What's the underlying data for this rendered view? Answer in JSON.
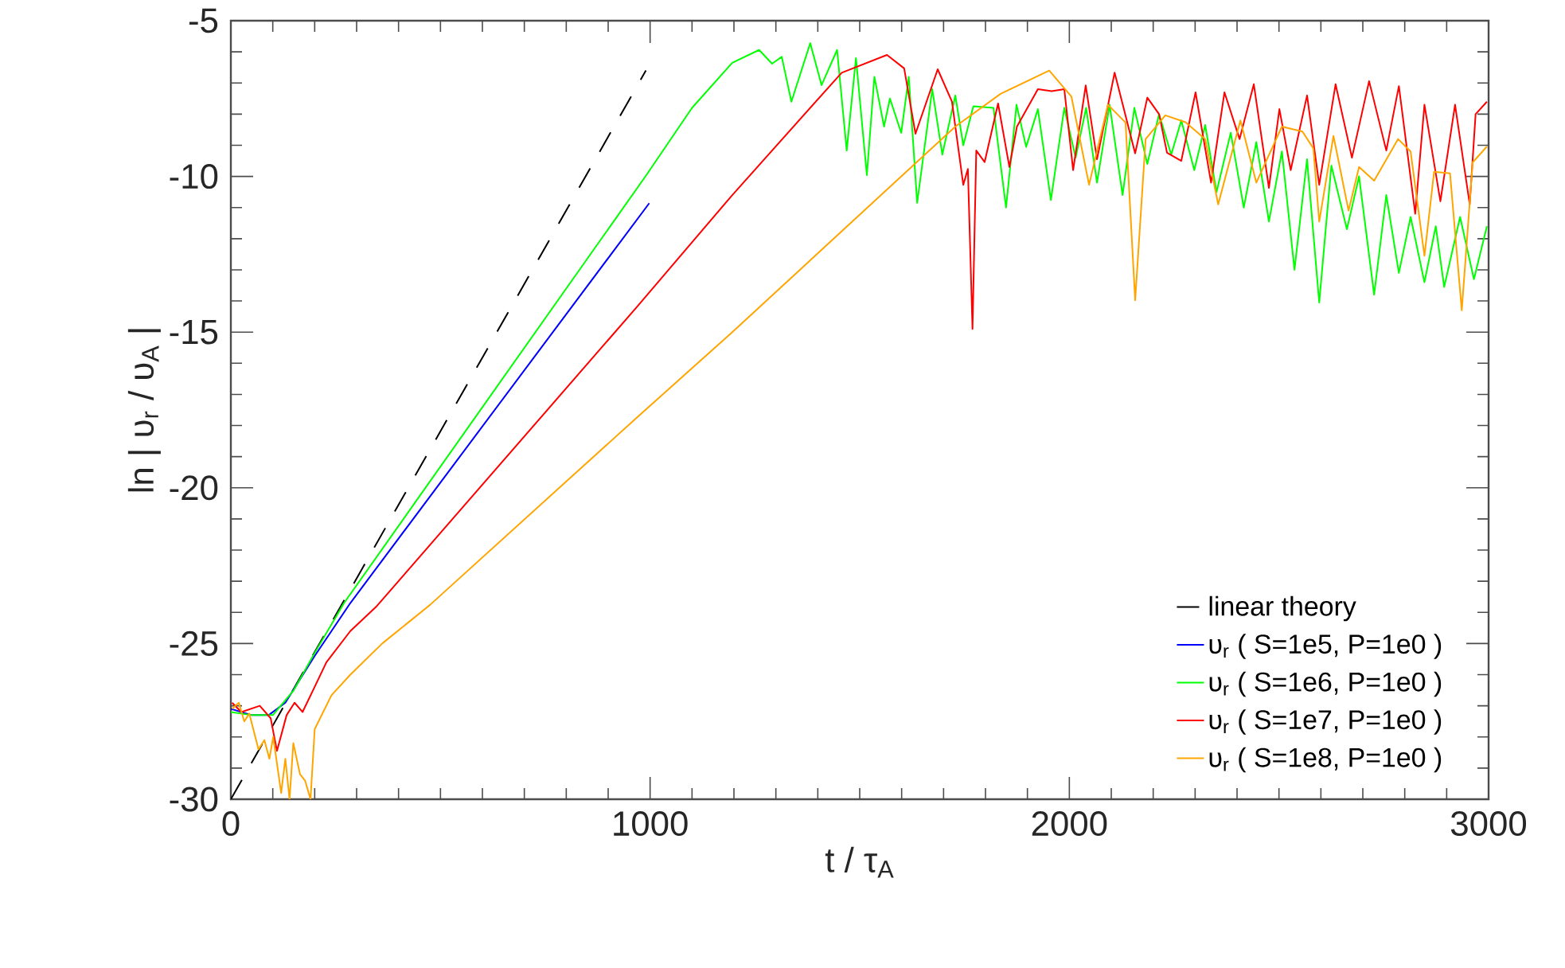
{
  "chart_data": {
    "type": "line",
    "xlabel": "t / τ$_{A}$",
    "ylabel": "ln | υ$_{r}$ / υ$_{A}$ |",
    "xlim": [
      0,
      3000
    ],
    "ylim": [
      -30,
      -5
    ],
    "xticks": [
      0,
      1000,
      2000,
      3000
    ],
    "yticks": [
      -30,
      -25,
      -20,
      -15,
      -10,
      -5
    ],
    "legend": "bottom right",
    "grid": false,
    "series": [
      {
        "name": "linear theory",
        "color": "#000000",
        "line_style": "dashed",
        "x": [
          0,
          990
        ],
        "values": [
          -30,
          -6.6
        ]
      },
      {
        "name": "υ$_{r}$ ( S=1e5, P=1e0 )",
        "color": "#0000ff",
        "x": [
          0,
          50,
          90,
          130,
          200,
          285,
          998
        ],
        "values": [
          -27.1,
          -27.3,
          -27.3,
          -26.9,
          -25.4,
          -23.7,
          -10.86
        ]
      },
      {
        "name": "υ$_{r}$ ( S=1e6, P=1e0 )",
        "color": "#00ff00",
        "x": [
          0,
          50,
          100,
          150,
          200,
          270,
          991,
          1100,
          1196,
          1260,
          1291,
          1314,
          1337,
          1382,
          1409,
          1446,
          1469,
          1491,
          1517,
          1535,
          1558,
          1572,
          1599,
          1617,
          1637,
          1673,
          1697,
          1728,
          1747,
          1771,
          1819,
          1849,
          1874,
          1897,
          1925,
          1956,
          1988,
          2015,
          2040,
          2066,
          2096,
          2127,
          2155,
          2186,
          2214,
          2243,
          2267,
          2298,
          2324,
          2351,
          2385,
          2416,
          2446,
          2476,
          2507,
          2537,
          2567,
          2596,
          2625,
          2662,
          2691,
          2727,
          2756,
          2786,
          2814,
          2847,
          2874,
          2894,
          2932,
          2965,
          2996
        ],
        "values": [
          -27.2,
          -27.3,
          -27.3,
          -26.5,
          -25.3,
          -23.7,
          -9.96,
          -7.8,
          -6.35,
          -5.94,
          -6.38,
          -6.16,
          -7.6,
          -5.72,
          -7.07,
          -5.94,
          -9.17,
          -6.2,
          -9.96,
          -6.8,
          -8.4,
          -7.5,
          -8.6,
          -6.8,
          -10.85,
          -7.2,
          -9.3,
          -7.4,
          -9.0,
          -7.75,
          -7.8,
          -11.0,
          -7.7,
          -9.05,
          -7.84,
          -10.76,
          -7.8,
          -9.4,
          -7.8,
          -10.2,
          -7.7,
          -10.6,
          -7.8,
          -9.6,
          -8.0,
          -9.3,
          -8.2,
          -9.8,
          -8.35,
          -10.5,
          -8.6,
          -11.0,
          -8.9,
          -11.45,
          -9.2,
          -13.0,
          -9.45,
          -14.05,
          -9.65,
          -11.7,
          -10.0,
          -13.8,
          -10.6,
          -13.1,
          -11.3,
          -13.4,
          -11.6,
          -13.55,
          -11.3,
          -13.3,
          -11.6
        ]
      },
      {
        "name": "υ$_{r}$ ( S=1e7, P=1e0 )",
        "color": "#ff0000",
        "x": [
          3,
          25,
          69,
          95,
          110,
          133,
          152,
          171,
          196,
          228,
          285,
          348,
          968,
          1196,
          1457,
          1565,
          1606,
          1633,
          1686,
          1720,
          1747,
          1758,
          1769,
          1778,
          1798,
          1830,
          1857,
          1875,
          1925,
          1958,
          1988,
          2009,
          2039,
          2066,
          2108,
          2157,
          2186,
          2214,
          2233,
          2267,
          2301,
          2338,
          2370,
          2406,
          2440,
          2476,
          2501,
          2528,
          2567,
          2596,
          2635,
          2674,
          2715,
          2756,
          2786,
          2825,
          2847,
          2885,
          2920,
          2955,
          2969,
          2996
        ],
        "values": [
          -26.9,
          -27.2,
          -27.0,
          -27.4,
          -28.45,
          -27.3,
          -26.9,
          -27.2,
          -26.5,
          -25.6,
          -24.6,
          -23.8,
          -14.2,
          -10.6,
          -6.67,
          -6.1,
          -6.53,
          -8.63,
          -6.56,
          -7.6,
          -10.27,
          -9.76,
          -14.9,
          -9.17,
          -9.54,
          -7.66,
          -9.7,
          -8.4,
          -7.2,
          -7.26,
          -7.2,
          -9.8,
          -7.08,
          -9.45,
          -6.67,
          -9.26,
          -7.47,
          -8.0,
          -9.24,
          -9.5,
          -7.3,
          -10.2,
          -7.3,
          -8.8,
          -7.04,
          -10.37,
          -7.84,
          -9.8,
          -7.4,
          -10.27,
          -7.04,
          -9.4,
          -6.94,
          -9.17,
          -7.1,
          -11.2,
          -7.7,
          -10.8,
          -7.7,
          -10.9,
          -8.0,
          -7.6
        ]
      },
      {
        "name": "υ$_{r}$ ( S=1e8, P=1e0 )",
        "color": "#ffa500",
        "x": [
          3,
          19,
          32,
          44,
          66,
          80,
          92,
          101,
          120,
          130,
          140,
          149,
          165,
          177,
          190,
          200,
          240,
          285,
          361,
          475,
          968,
          1196,
          1728,
          1836,
          1952,
          2005,
          2047,
          2092,
          2134,
          2157,
          2182,
          2229,
          2277,
          2324,
          2355,
          2408,
          2446,
          2507,
          2556,
          2582,
          2596,
          2630,
          2666,
          2691,
          2727,
          2784,
          2814,
          2847,
          2870,
          2908,
          2936,
          2962,
          2996
        ],
        "values": [
          -27.1,
          -26.9,
          -27.5,
          -27.25,
          -28.4,
          -28.1,
          -28.7,
          -28.0,
          -29.8,
          -28.7,
          -30,
          -28.2,
          -29.2,
          -29.4,
          -30,
          -27.75,
          -26.66,
          -26.0,
          -25.0,
          -23.76,
          -17.75,
          -15.0,
          -8.4,
          -7.35,
          -6.6,
          -7.44,
          -10.27,
          -7.7,
          -8.27,
          -13.98,
          -8.8,
          -8.04,
          -8.26,
          -8.8,
          -10.9,
          -8.2,
          -10.2,
          -8.4,
          -8.56,
          -9.1,
          -11.45,
          -8.7,
          -11.1,
          -9.7,
          -10.14,
          -8.8,
          -9.2,
          -12.55,
          -9.85,
          -9.9,
          -14.3,
          -9.55,
          -9.04
        ]
      }
    ]
  }
}
